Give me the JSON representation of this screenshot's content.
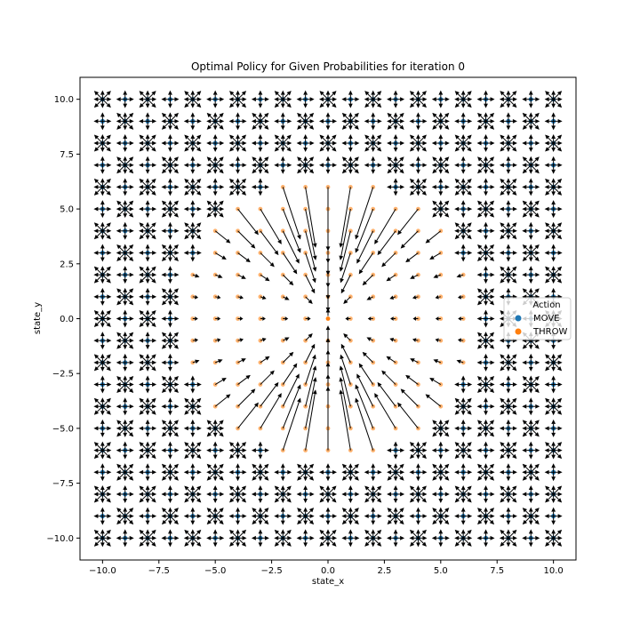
{
  "chart_data": {
    "type": "scatter",
    "title": "Optimal Policy for Given Probabilities for iteration 0",
    "xlabel": "state_x",
    "ylabel": "state_y",
    "xlim": [
      -11,
      11
    ],
    "ylim": [
      -11,
      11
    ],
    "xticks": [
      -10.0,
      -7.5,
      -5.0,
      -2.5,
      0.0,
      2.5,
      5.0,
      7.5,
      10.0
    ],
    "yticks": [
      -10.0,
      -7.5,
      -5.0,
      -2.5,
      0.0,
      2.5,
      5.0,
      7.5,
      10.0
    ],
    "xtick_labels": [
      "−10.0",
      "−7.5",
      "−5.0",
      "−2.5",
      "0.0",
      "2.5",
      "5.0",
      "7.5",
      "10.0"
    ],
    "ytick_labels": [
      "−10.0",
      "−7.5",
      "−5.0",
      "−2.5",
      "0.0",
      "2.5",
      "5.0",
      "7.5",
      "10.0"
    ],
    "grid_range": [
      -10,
      10
    ],
    "throw_region": "distance from origin below about 6.5 (grid points on the |x| = 6 or |y| = 6 edge with the other coordinate between -2 and 2 are also THROW)",
    "move_arrows": "four-way cross (up, down, left, right) plus diagonals at every other point",
    "throw_arrows": "point toward the origin (0, 0); THROW points near the x-axis have short arrows, points near the y-axis long ones",
    "grid": false,
    "legend": {
      "title": "Action",
      "placement": "center-right",
      "entries": [
        "MOVE",
        "THROW"
      ]
    },
    "series": [
      {
        "name": "MOVE",
        "color": "#1f77b4"
      },
      {
        "name": "THROW",
        "color": "#ff7f0e"
      }
    ]
  }
}
